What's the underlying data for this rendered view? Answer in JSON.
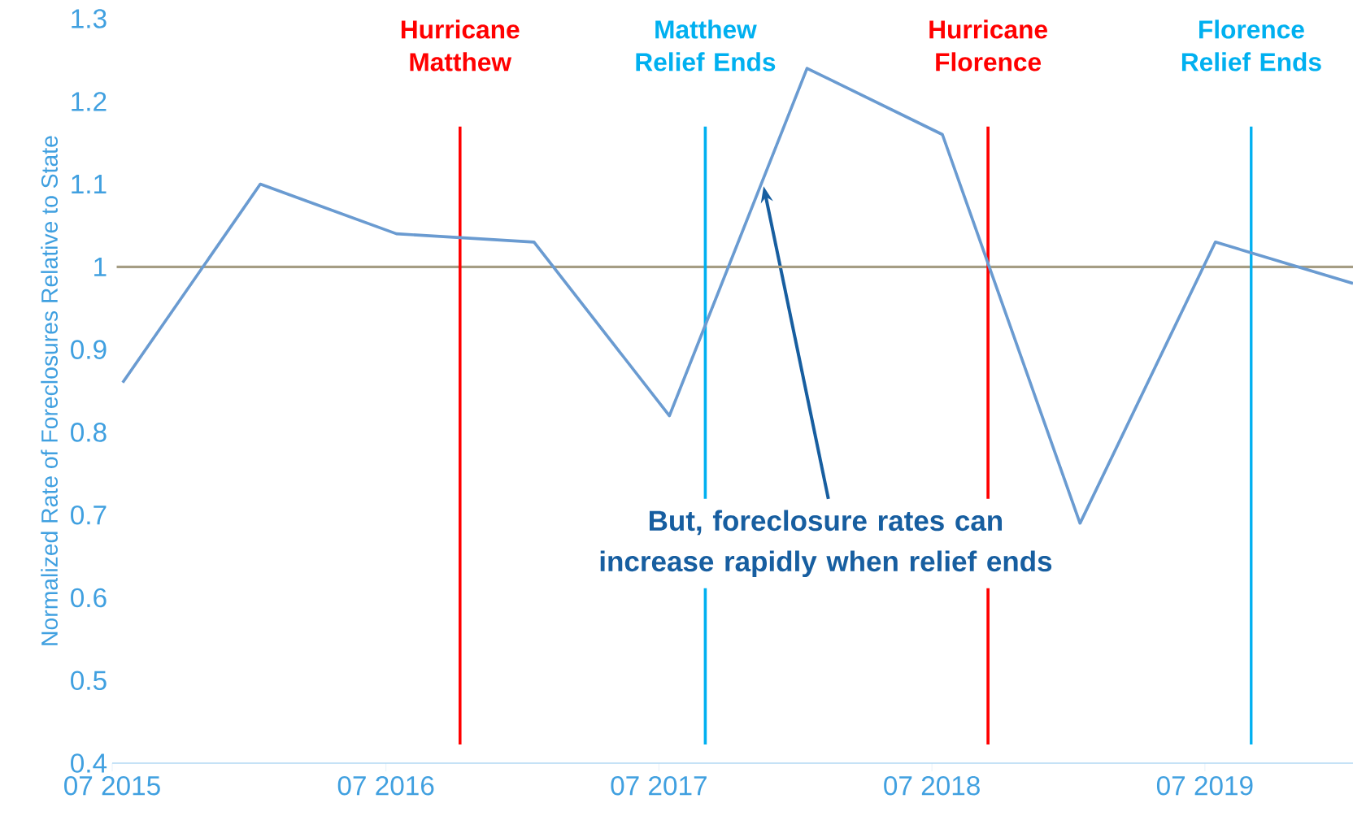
{
  "chart_data": {
    "type": "line",
    "ylabel": "Normalized Rate of Foreclosures Relative to State",
    "x": [
      "2015-07-15",
      "2016-01-15",
      "2016-07-15",
      "2017-01-15",
      "2017-07-15",
      "2018-01-15",
      "2018-07-15",
      "2019-01-15",
      "2019-07-15",
      "2020-01-15"
    ],
    "series": [
      {
        "color": "#6a9bd1",
        "values": [
          0.86,
          1.1,
          1.04,
          1.03,
          0.82,
          1.24,
          1.16,
          0.69,
          1.03,
          0.98
        ]
      }
    ],
    "xlim": [
      "2015-07-01",
      "2020-01-15"
    ],
    "xticks": [
      {
        "value": "2015-07-01",
        "label": "07 2015"
      },
      {
        "value": "2016-07-01",
        "label": "07 2016"
      },
      {
        "value": "2017-07-01",
        "label": "07 2017"
      },
      {
        "value": "2018-07-01",
        "label": "07 2018"
      },
      {
        "value": "2019-07-01",
        "label": "07 2019"
      }
    ],
    "ylim": [
      0.4,
      1.3
    ],
    "yticks": [
      0.4,
      0.5,
      0.6,
      0.7,
      0.8,
      0.9,
      1,
      1.1,
      1.2,
      1.3
    ],
    "ref_lines": [
      {
        "axis": "y",
        "value": 1,
        "color": "#a59d84"
      },
      {
        "axis": "x",
        "value": "2016-10-08",
        "label": "Hurricane Matthew",
        "color": "#ff0000"
      },
      {
        "axis": "x",
        "value": "2017-09-01",
        "label": "Matthew Relief Ends",
        "color": "#00b0f0"
      },
      {
        "axis": "x",
        "value": "2018-09-14",
        "label": "Hurricane Florence",
        "color": "#ff0000"
      },
      {
        "axis": "x",
        "value": "2019-09-01",
        "label": "Florence Relief Ends",
        "color": "#00b0f0"
      }
    ],
    "annotations": [
      "But, foreclosure rates can increase rapidly when relief ends"
    ],
    "grid": false,
    "marker": "none",
    "line_style": "solid"
  }
}
